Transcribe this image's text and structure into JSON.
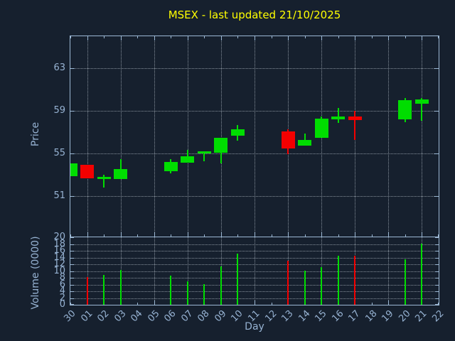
{
  "colors": {
    "background": "#16202e",
    "frame": "#9cb8d4",
    "tick_label": "#96b2d2",
    "grid": "#c3ccd6",
    "title": "#ffff00",
    "up": "#00dd00",
    "down": "#f40000"
  },
  "chart_data": {
    "type": "candlestick",
    "title": "MSEX - last updated 21/10/2025",
    "xlabel": "Day",
    "ylabel_price": "Price",
    "ylabel_volume": "Volume (0000)",
    "grid": true,
    "x_categories": [
      "30",
      "01",
      "02",
      "03",
      "04",
      "05",
      "06",
      "07",
      "08",
      "09",
      "10",
      "11",
      "12",
      "13",
      "14",
      "15",
      "16",
      "17",
      "18",
      "19",
      "20",
      "21",
      "22"
    ],
    "price_axis": {
      "ylim": [
        47.2,
        66.0
      ],
      "ticks": [
        51,
        55,
        59,
        63
      ]
    },
    "volume_axis": {
      "ylim": [
        0,
        20
      ],
      "ticks": [
        0,
        2,
        4,
        6,
        8,
        10,
        12,
        14,
        16,
        18,
        20
      ]
    },
    "candles": [
      {
        "day": "30",
        "open": 52.9,
        "high": 54.1,
        "low": 52.9,
        "close": 54.1,
        "volume": 0
      },
      {
        "day": "01",
        "open": 53.95,
        "high": 53.95,
        "low": 52.65,
        "close": 52.65,
        "volume": 8.2
      },
      {
        "day": "02",
        "open": 52.6,
        "high": 53.0,
        "low": 51.8,
        "close": 52.8,
        "volume": 8.9
      },
      {
        "day": "03",
        "open": 52.6,
        "high": 54.45,
        "low": 52.6,
        "close": 53.55,
        "volume": 10.4
      },
      {
        "day": "06",
        "open": 53.35,
        "high": 54.5,
        "low": 53.15,
        "close": 54.2,
        "volume": 8.7
      },
      {
        "day": "07",
        "open": 54.15,
        "high": 55.35,
        "low": 54.15,
        "close": 54.75,
        "volume": 6.9
      },
      {
        "day": "08",
        "open": 55.0,
        "high": 55.2,
        "low": 54.3,
        "close": 55.2,
        "volume": 6.1
      },
      {
        "day": "09",
        "open": 55.1,
        "high": 56.5,
        "low": 54.1,
        "close": 56.5,
        "volume": 11.4
      },
      {
        "day": "10",
        "open": 56.7,
        "high": 57.7,
        "low": 56.2,
        "close": 57.3,
        "volume": 15.2
      },
      {
        "day": "13",
        "open": 57.1,
        "high": 57.3,
        "low": 54.95,
        "close": 55.45,
        "volume": 13.1
      },
      {
        "day": "14",
        "open": 55.75,
        "high": 56.9,
        "low": 55.75,
        "close": 56.3,
        "volume": 10.1
      },
      {
        "day": "15",
        "open": 56.45,
        "high": 58.5,
        "low": 56.45,
        "close": 58.3,
        "volume": 11.1
      },
      {
        "day": "16",
        "open": 58.2,
        "high": 59.3,
        "low": 57.9,
        "close": 58.45,
        "volume": 14.5
      },
      {
        "day": "17",
        "open": 58.45,
        "high": 59.0,
        "low": 56.3,
        "close": 58.15,
        "volume": 14.5
      },
      {
        "day": "20",
        "open": 58.2,
        "high": 60.2,
        "low": 57.95,
        "close": 60.0,
        "volume": 13.4
      },
      {
        "day": "21",
        "open": 59.7,
        "high": 60.2,
        "low": 58.05,
        "close": 60.05,
        "volume": 18.1
      }
    ]
  }
}
